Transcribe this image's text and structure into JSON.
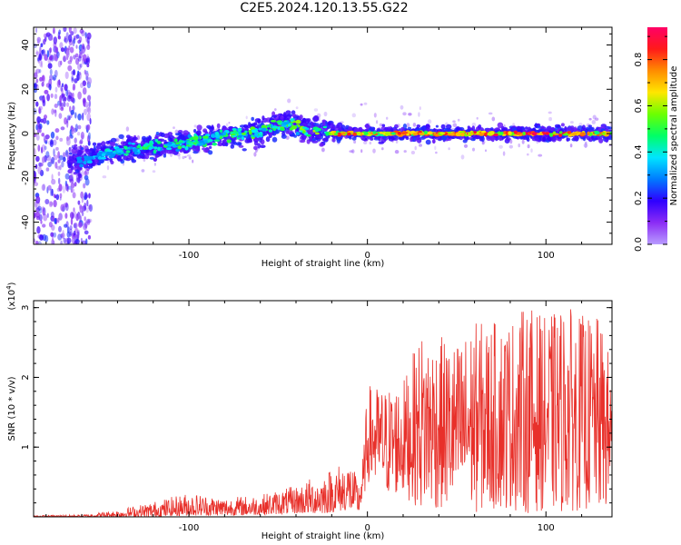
{
  "title": "C2E5.2024.120.13.55.G22",
  "chart_data": [
    {
      "type": "heatmap",
      "title": "C2E5.2024.120.13.55.G22",
      "xlabel": "Height of straight line (km)",
      "ylabel": "Frequency (Hz)",
      "xlim": [
        -187,
        137
      ],
      "ylim": [
        -50,
        48
      ],
      "x_ticks": [
        "-100",
        "0",
        "100"
      ],
      "x_tick_values": [
        -100,
        0,
        100
      ],
      "y_ticks": [
        "-40",
        "-20",
        "0",
        "20",
        "40"
      ],
      "y_tick_values": [
        -40,
        -20,
        0,
        20,
        40
      ],
      "colorbar": {
        "label": "Normalized spectral amplitude",
        "range": [
          0.0,
          0.94
        ],
        "ticks": [
          "0.0",
          "0.2",
          "0.4",
          "0.6",
          "0.8"
        ],
        "tick_values": [
          0.0,
          0.2,
          0.4,
          0.6,
          0.8
        ],
        "colormap": [
          "#b89cff",
          "#8b2cf5",
          "#2e00ff",
          "#007bff",
          "#00e5ff",
          "#00ff66",
          "#6cff00",
          "#ffe600",
          "#ff8c00",
          "#ff1a1a",
          "#ff0066"
        ]
      },
      "ridge": {
        "x": [
          -187,
          -160,
          -140,
          -120,
          -100,
          -80,
          -60,
          -45,
          -30,
          -15,
          0,
          20,
          40,
          60,
          80,
          100,
          120,
          137
        ],
        "frequency": [
          -13,
          -12,
          -8,
          -6,
          -4,
          -1,
          1,
          5,
          1,
          0,
          0,
          0,
          0,
          0,
          0,
          0,
          0,
          0
        ],
        "peak_amplitude": [
          0.2,
          0.3,
          0.45,
          0.5,
          0.5,
          0.5,
          0.55,
          0.55,
          0.6,
          0.85,
          0.75,
          0.85,
          0.85,
          0.9,
          0.9,
          0.9,
          0.85,
          0.8
        ]
      },
      "grid": false
    },
    {
      "type": "line",
      "xlabel": "Height of straight line (km)",
      "ylabel": "SNR (10 * v/v)",
      "y_multiplier": "(x10^4)",
      "xlim": [
        -187,
        137
      ],
      "ylim": [
        0,
        3.1
      ],
      "x_ticks": [
        "-100",
        "0",
        "100"
      ],
      "x_tick_values": [
        -100,
        0,
        100
      ],
      "y_ticks": [
        "1",
        "2",
        "3"
      ],
      "y_tick_values": [
        1,
        2,
        3
      ],
      "color": "#e8302a",
      "envelope": {
        "x": [
          -187,
          -160,
          -140,
          -120,
          -100,
          -80,
          -60,
          -40,
          -25,
          -10,
          -5,
          -2,
          0,
          10,
          20,
          30,
          40,
          50,
          60,
          70,
          80,
          90,
          100,
          110,
          120,
          130,
          137
        ],
        "max": [
          0.02,
          0.03,
          0.1,
          0.22,
          0.35,
          0.28,
          0.32,
          0.45,
          0.65,
          0.85,
          0.5,
          1.0,
          1.9,
          1.85,
          1.95,
          2.65,
          2.6,
          2.5,
          2.8,
          2.8,
          2.85,
          3.05,
          2.85,
          3.05,
          2.9,
          2.85,
          2.2
        ],
        "min": [
          0.0,
          0.0,
          0.0,
          0.0,
          0.02,
          0.02,
          0.03,
          0.05,
          0.05,
          0.1,
          0.05,
          0.3,
          0.5,
          0.3,
          0.3,
          0.1,
          0.1,
          0.1,
          0.05,
          0.1,
          0.1,
          0.05,
          0.1,
          0.05,
          0.1,
          0.05,
          0.1
        ]
      },
      "grid": false
    }
  ]
}
